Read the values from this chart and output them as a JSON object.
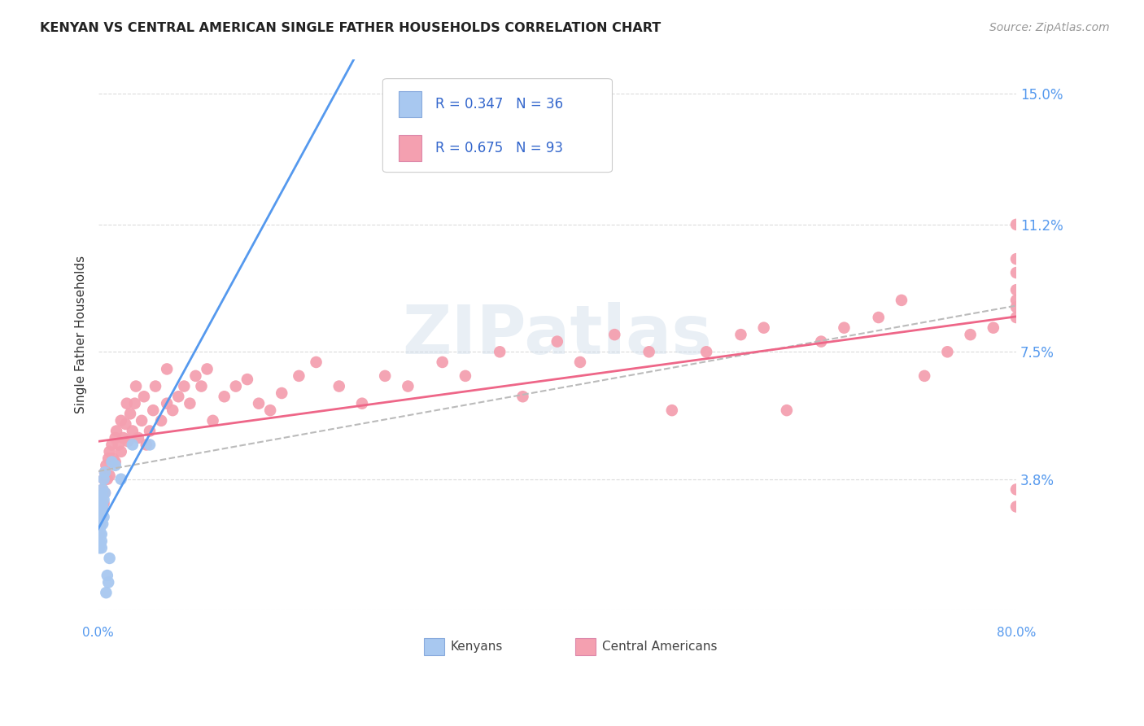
{
  "title": "KENYAN VS CENTRAL AMERICAN SINGLE FATHER HOUSEHOLDS CORRELATION CHART",
  "source": "Source: ZipAtlas.com",
  "ylabel": "Single Father Households",
  "xlim": [
    0.0,
    0.8
  ],
  "ylim": [
    0.0,
    0.16
  ],
  "ytick_values": [
    0.0,
    0.038,
    0.075,
    0.112,
    0.15
  ],
  "ytick_labels": [
    "",
    "3.8%",
    "7.5%",
    "11.2%",
    "15.0%"
  ],
  "xtick_values": [
    0.0,
    0.1,
    0.2,
    0.3,
    0.4,
    0.5,
    0.6,
    0.7,
    0.8
  ],
  "R_kenyan": 0.347,
  "N_kenyan": 36,
  "R_central": 0.675,
  "N_central": 93,
  "kenyan_dot_color": "#a8c8f0",
  "central_dot_color": "#f4a0b0",
  "kenyan_line_color": "#5599ee",
  "central_line_color": "#ee6688",
  "combined_line_color": "#bbbbbb",
  "background_color": "#ffffff",
  "grid_color": "#cccccc",
  "title_color": "#222222",
  "source_color": "#999999",
  "axis_label_color": "#333333",
  "right_tick_color": "#5599ee",
  "legend_text_color": "#3366cc",
  "watermark": "ZIPatlas",
  "kenyan_x": [
    0.001,
    0.001,
    0.001,
    0.001,
    0.001,
    0.002,
    0.002,
    0.002,
    0.002,
    0.002,
    0.002,
    0.002,
    0.003,
    0.003,
    0.003,
    0.003,
    0.003,
    0.003,
    0.003,
    0.004,
    0.004,
    0.004,
    0.005,
    0.005,
    0.005,
    0.006,
    0.006,
    0.007,
    0.008,
    0.009,
    0.01,
    0.012,
    0.015,
    0.02,
    0.03,
    0.045
  ],
  "kenyan_y": [
    0.025,
    0.028,
    0.02,
    0.022,
    0.018,
    0.03,
    0.026,
    0.024,
    0.022,
    0.028,
    0.032,
    0.019,
    0.033,
    0.028,
    0.026,
    0.022,
    0.02,
    0.03,
    0.018,
    0.035,
    0.03,
    0.025,
    0.038,
    0.032,
    0.027,
    0.04,
    0.034,
    0.005,
    0.01,
    0.008,
    0.015,
    0.043,
    0.042,
    0.038,
    0.048,
    0.048
  ],
  "central_x": [
    0.001,
    0.001,
    0.002,
    0.002,
    0.003,
    0.003,
    0.004,
    0.004,
    0.005,
    0.005,
    0.006,
    0.006,
    0.007,
    0.008,
    0.009,
    0.01,
    0.01,
    0.012,
    0.013,
    0.015,
    0.015,
    0.016,
    0.018,
    0.02,
    0.02,
    0.022,
    0.024,
    0.025,
    0.026,
    0.028,
    0.03,
    0.032,
    0.033,
    0.035,
    0.038,
    0.04,
    0.042,
    0.045,
    0.048,
    0.05,
    0.055,
    0.06,
    0.06,
    0.065,
    0.07,
    0.075,
    0.08,
    0.085,
    0.09,
    0.095,
    0.1,
    0.11,
    0.12,
    0.13,
    0.14,
    0.15,
    0.16,
    0.175,
    0.19,
    0.21,
    0.23,
    0.25,
    0.27,
    0.3,
    0.32,
    0.35,
    0.37,
    0.4,
    0.42,
    0.45,
    0.48,
    0.5,
    0.53,
    0.56,
    0.58,
    0.6,
    0.63,
    0.65,
    0.68,
    0.7,
    0.72,
    0.74,
    0.76,
    0.78,
    0.8,
    0.8,
    0.8,
    0.8,
    0.8,
    0.8,
    0.8,
    0.8,
    0.8
  ],
  "central_y": [
    0.026,
    0.022,
    0.03,
    0.025,
    0.033,
    0.027,
    0.035,
    0.029,
    0.038,
    0.031,
    0.04,
    0.034,
    0.042,
    0.038,
    0.044,
    0.046,
    0.039,
    0.048,
    0.044,
    0.05,
    0.043,
    0.052,
    0.048,
    0.055,
    0.046,
    0.05,
    0.054,
    0.06,
    0.049,
    0.057,
    0.052,
    0.06,
    0.065,
    0.05,
    0.055,
    0.062,
    0.048,
    0.052,
    0.058,
    0.065,
    0.055,
    0.06,
    0.07,
    0.058,
    0.062,
    0.065,
    0.06,
    0.068,
    0.065,
    0.07,
    0.055,
    0.062,
    0.065,
    0.067,
    0.06,
    0.058,
    0.063,
    0.068,
    0.072,
    0.065,
    0.06,
    0.068,
    0.065,
    0.072,
    0.068,
    0.075,
    0.062,
    0.078,
    0.072,
    0.08,
    0.075,
    0.058,
    0.075,
    0.08,
    0.082,
    0.058,
    0.078,
    0.082,
    0.085,
    0.09,
    0.068,
    0.075,
    0.08,
    0.082,
    0.085,
    0.088,
    0.09,
    0.093,
    0.098,
    0.102,
    0.112,
    0.03,
    0.035
  ]
}
